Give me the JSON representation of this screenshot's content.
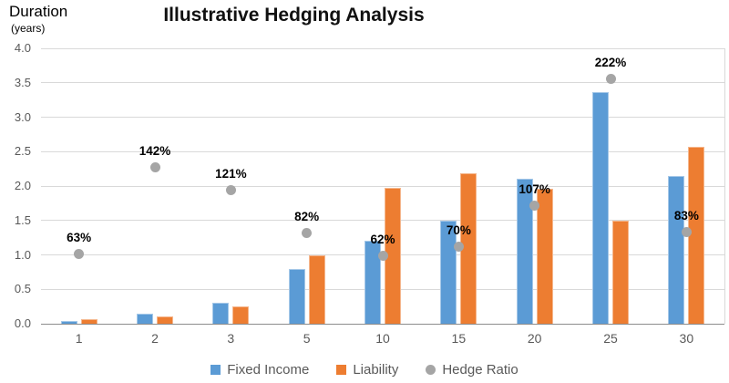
{
  "chart_data": {
    "type": "bar",
    "title": "Illustrative Hedging Analysis",
    "y_axis_title": "Duration",
    "y_axis_subtitle": "(years)",
    "categories": [
      "1",
      "2",
      "3",
      "5",
      "10",
      "15",
      "20",
      "25",
      "30"
    ],
    "series": [
      {
        "name": "Fixed Income",
        "type": "bar",
        "color": "#5B9BD5",
        "values": [
          0.04,
          0.15,
          0.3,
          0.8,
          1.2,
          1.5,
          2.1,
          3.37,
          2.14
        ]
      },
      {
        "name": "Liability",
        "type": "bar",
        "color": "#ED7D31",
        "values": [
          0.06,
          0.1,
          0.25,
          1.0,
          1.97,
          2.19,
          1.96,
          1.5,
          2.57
        ]
      },
      {
        "name": "Hedge Ratio",
        "type": "scatter",
        "color": "#A5A5A5",
        "values_pct": [
          63,
          142,
          121,
          82,
          62,
          70,
          107,
          222,
          83
        ],
        "labels": [
          "63%",
          "142%",
          "121%",
          "82%",
          "62%",
          "70%",
          "107%",
          "222%",
          "83%"
        ]
      }
    ],
    "ylim": [
      0,
      4
    ],
    "yticks": [
      "4.0",
      "3.5",
      "3.0",
      "2.5",
      "2.0",
      "1.5",
      "1.0",
      "0.5",
      "0.0"
    ],
    "secondary_axis_range_pct": [
      0,
      250
    ],
    "grid": true,
    "legend_position": "bottom",
    "colors": {
      "gridline": "#D9D9D9",
      "axis_line": "#8C8C8C",
      "tick_text": "#595959",
      "data_label_text": "#000000"
    }
  }
}
